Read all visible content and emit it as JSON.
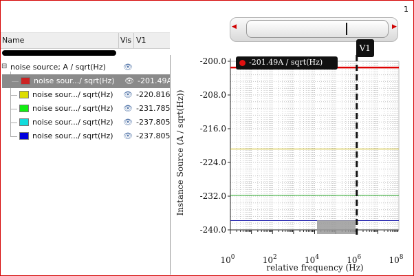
{
  "top_number": "1",
  "table": {
    "col_name": "Name",
    "col_vis": "Vis",
    "col_v1": "V1"
  },
  "tree": {
    "group_label": "noise source; A / sqrt(Hz)",
    "rows": [
      {
        "label": "noise sour.../ sqrt(Hz)",
        "value": "-201.49A",
        "color": "#cc2222",
        "selected": true
      },
      {
        "label": "noise sour.../ sqrt(Hz)",
        "value": "-220.816",
        "color": "#dddd00",
        "selected": false
      },
      {
        "label": "noise sour.../ sqrt(Hz)",
        "value": "-231.785",
        "color": "#11ee11",
        "selected": false
      },
      {
        "label": "noise sour.../ sqrt(Hz)",
        "value": "-237.805",
        "color": "#11dddd",
        "selected": false
      },
      {
        "label": "noise sour.../ sqrt(Hz)",
        "value": "-237.805",
        "color": "#0000dd",
        "selected": false
      }
    ]
  },
  "cursor": {
    "name": "V1",
    "readout": "-201.49A / sqrt(Hz)",
    "x_value": 1000000
  },
  "chart_data": {
    "type": "line",
    "ylabel": "Instance Source (A / sqrt(Hz))",
    "xlabel": "relative frequency (Hz)",
    "x_scale": "log",
    "xlim": [
      1,
      100000000
    ],
    "ylim": [
      -240,
      -200
    ],
    "y_ticks": [
      "-200.0",
      "-208.0",
      "-216.0",
      "-224.0",
      "-232.0",
      "-240.0"
    ],
    "x_ticks": [
      {
        "base": "10",
        "exp": "0"
      },
      {
        "base": "10",
        "exp": "2"
      },
      {
        "base": "10",
        "exp": "4"
      },
      {
        "base": "10",
        "exp": "6"
      },
      {
        "base": "10",
        "exp": "8"
      }
    ],
    "grid": true,
    "series": [
      {
        "y": -201.49,
        "color": "#dd0000"
      },
      {
        "y": -220.816,
        "color": "#c8b400"
      },
      {
        "y": -231.785,
        "color": "#22aa22"
      },
      {
        "y": -237.805,
        "color": "#11cccc"
      },
      {
        "y": -237.805,
        "color": "#1a1aaa"
      }
    ]
  }
}
